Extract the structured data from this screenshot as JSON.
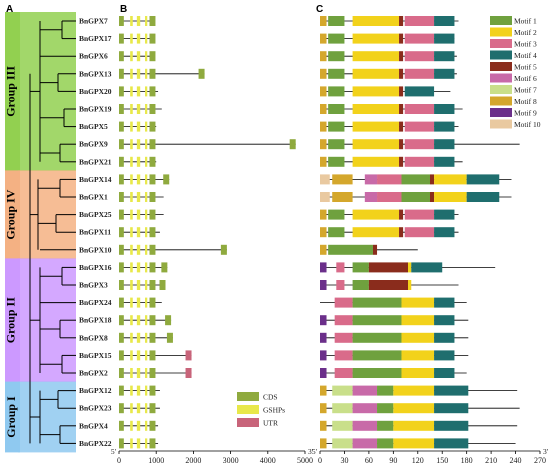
{
  "panels": {
    "a": "A",
    "b": "B",
    "c": "C"
  },
  "groups": [
    {
      "label": "Group III",
      "color": "#92d050",
      "first": 0,
      "last": 8
    },
    {
      "label": "Group IV",
      "color": "#f4b183",
      "first": 9,
      "last": 13
    },
    {
      "label": "Group II",
      "color": "#cc99ff",
      "first": 14,
      "last": 20
    },
    {
      "label": "Group I",
      "color": "#8fc9f0",
      "first": 21,
      "last": 24
    }
  ],
  "genes": [
    {
      "name": "BnGPX7",
      "group": "III",
      "gene_length": 950,
      "cds": [
        [
          0,
          130
        ],
        [
          300,
          370
        ],
        [
          480,
          570
        ],
        [
          700,
          760
        ],
        [
          820,
          980
        ]
      ],
      "ctype": "a",
      "protein_length": 170,
      "motifs": [
        8,
        1,
        2,
        5,
        3,
        4
      ],
      "sel": 2
    },
    {
      "name": "BnGPX17",
      "group": "III",
      "gene_length": 950,
      "cds": [
        [
          0,
          130
        ],
        [
          300,
          370
        ],
        [
          480,
          570
        ],
        [
          700,
          760
        ],
        [
          820,
          980
        ]
      ],
      "ctype": "a",
      "protein_length": 165,
      "motifs": [
        8,
        1,
        2,
        5,
        3,
        4
      ],
      "sel": 2
    },
    {
      "name": "BnGPX6",
      "group": "III",
      "gene_length": 950,
      "cds": [
        [
          0,
          130
        ],
        [
          300,
          370
        ],
        [
          480,
          570
        ],
        [
          700,
          760
        ],
        [
          820,
          980
        ]
      ],
      "ctype": "a",
      "protein_length": 168,
      "motifs": [
        8,
        1,
        2,
        5,
        3,
        4
      ],
      "sel": 2
    },
    {
      "name": "BnGPX13",
      "group": "III",
      "gene_length": 2300,
      "cds": [
        [
          0,
          130
        ],
        [
          300,
          370
        ],
        [
          480,
          570
        ],
        [
          700,
          760
        ],
        [
          820,
          980
        ]
      ],
      "ctype": "a",
      "protein_length": 168,
      "motifs": [
        8,
        1,
        2,
        5,
        3,
        4
      ],
      "sel": 2
    },
    {
      "name": "BnGPX20",
      "group": "III",
      "gene_length": 1050,
      "cds": [
        [
          0,
          130
        ],
        [
          300,
          370
        ],
        [
          480,
          570
        ],
        [
          700,
          760
        ],
        [
          820,
          980
        ]
      ],
      "ctype": "a",
      "protein_length": 160,
      "motifs": [
        8,
        1,
        2,
        5,
        4
      ],
      "sel": 2
    },
    {
      "name": "BnGPX19",
      "group": "III",
      "gene_length": 1150,
      "cds": [
        [
          0,
          130
        ],
        [
          300,
          370
        ],
        [
          480,
          570
        ],
        [
          700,
          760
        ],
        [
          820,
          980
        ]
      ],
      "ctype": "a",
      "protein_length": 175,
      "motifs": [
        8,
        1,
        2,
        5,
        3,
        4
      ],
      "sel": 2
    },
    {
      "name": "BnGPX5",
      "group": "III",
      "gene_length": 1000,
      "cds": [
        [
          0,
          130
        ],
        [
          300,
          370
        ],
        [
          480,
          570
        ],
        [
          700,
          760
        ],
        [
          820,
          980
        ]
      ],
      "ctype": "a",
      "protein_length": 170,
      "motifs": [
        8,
        1,
        2,
        5,
        3,
        4
      ],
      "sel": 2
    },
    {
      "name": "BnGPX9",
      "group": "III",
      "gene_length": 4750,
      "cds": [
        [
          0,
          130
        ],
        [
          300,
          370
        ],
        [
          480,
          570
        ],
        [
          700,
          760
        ],
        [
          820,
          980
        ]
      ],
      "ctype": "a",
      "protein_length": 245,
      "motifs": [
        8,
        1,
        2,
        5,
        3,
        4
      ],
      "sel": 2
    },
    {
      "name": "BnGPX21",
      "group": "III",
      "gene_length": 1000,
      "cds": [
        [
          0,
          130
        ],
        [
          300,
          370
        ],
        [
          480,
          570
        ],
        [
          700,
          760
        ],
        [
          820,
          980
        ]
      ],
      "ctype": "a",
      "protein_length": 175,
      "motifs": [
        8,
        1,
        2,
        5,
        3,
        4
      ],
      "sel": 2
    },
    {
      "name": "BnGPX14",
      "group": "IV",
      "gene_length": 1350,
      "cds": [
        [
          0,
          130
        ],
        [
          300,
          370
        ],
        [
          480,
          570
        ],
        [
          700,
          760
        ],
        [
          820,
          980
        ]
      ],
      "ctype": "b",
      "protein_length": 235,
      "motifs": [
        10,
        8,
        6,
        3,
        1,
        5,
        2,
        4
      ],
      "sel": 2
    },
    {
      "name": "BnGPX1",
      "group": "IV",
      "gene_length": 1200,
      "cds": [
        [
          0,
          130
        ],
        [
          300,
          370
        ],
        [
          480,
          570
        ],
        [
          700,
          760
        ],
        [
          820,
          980
        ]
      ],
      "ctype": "b",
      "protein_length": 235,
      "motifs": [
        10,
        8,
        6,
        3,
        1,
        5,
        2,
        4
      ],
      "sel": 2
    },
    {
      "name": "BnGPX25",
      "group": "IV",
      "gene_length": 1200,
      "cds": [
        [
          0,
          130
        ],
        [
          300,
          370
        ],
        [
          480,
          570
        ],
        [
          700,
          760
        ],
        [
          820,
          980
        ]
      ],
      "ctype": "a",
      "protein_length": 170,
      "motifs": [
        8,
        1,
        2,
        5,
        3,
        4
      ],
      "sel": 2
    },
    {
      "name": "BnGPX11",
      "group": "IV",
      "gene_length": 1100,
      "cds": [
        [
          0,
          130
        ],
        [
          300,
          370
        ],
        [
          480,
          570
        ],
        [
          700,
          760
        ],
        [
          820,
          980
        ]
      ],
      "ctype": "a",
      "protein_length": 170,
      "motifs": [
        8,
        1,
        2,
        5,
        3,
        4
      ],
      "sel": 2
    },
    {
      "name": "BnGPX10",
      "group": "IV",
      "gene_length": 2900,
      "cds": [
        [
          0,
          130
        ],
        [
          300,
          370
        ],
        [
          480,
          570
        ],
        [
          700,
          760
        ],
        [
          820,
          980
        ]
      ],
      "ctype": "c",
      "protein_length": 120,
      "motifs": [
        8,
        1,
        5
      ],
      "sel": 2
    },
    {
      "name": "BnGPX16",
      "group": "II",
      "gene_length": 1300,
      "cds": [
        [
          0,
          130
        ],
        [
          300,
          370
        ],
        [
          480,
          570
        ],
        [
          700,
          760
        ],
        [
          820,
          980
        ]
      ],
      "ctype": "d",
      "protein_length": 215,
      "motifs": [
        9,
        3,
        1,
        5,
        2,
        4
      ],
      "sel": 2
    },
    {
      "name": "BnGPX3",
      "group": "II",
      "gene_length": 1250,
      "cds": [
        [
          0,
          130
        ],
        [
          300,
          370
        ],
        [
          480,
          570
        ],
        [
          700,
          760
        ],
        [
          820,
          980
        ]
      ],
      "ctype": "d",
      "protein_length": 170,
      "motifs": [
        9,
        3,
        1,
        5,
        2
      ],
      "sel": 2
    },
    {
      "name": "BnGPX24",
      "group": "II",
      "gene_length": 1150,
      "cds": [
        [
          0,
          130
        ],
        [
          300,
          370
        ],
        [
          480,
          570
        ],
        [
          700,
          760
        ],
        [
          820,
          980
        ]
      ],
      "ctype": "e",
      "protein_length": 180,
      "motifs": [
        3,
        1,
        2,
        4
      ],
      "sel": 2
    },
    {
      "name": "BnGPX18",
      "group": "II",
      "gene_length": 1400,
      "cds": [
        [
          0,
          130
        ],
        [
          300,
          370
        ],
        [
          480,
          570
        ],
        [
          700,
          760
        ],
        [
          820,
          980
        ]
      ],
      "ctype": "f",
      "protein_length": 182,
      "motifs": [
        9,
        3,
        1,
        2,
        4
      ],
      "sel": 2
    },
    {
      "name": "BnGPX8",
      "group": "II",
      "gene_length": 1450,
      "cds": [
        [
          0,
          130
        ],
        [
          300,
          370
        ],
        [
          480,
          570
        ],
        [
          700,
          760
        ],
        [
          820,
          980
        ]
      ],
      "ctype": "f",
      "protein_length": 182,
      "motifs": [
        9,
        3,
        1,
        2,
        4
      ],
      "sel": 2
    },
    {
      "name": "BnGPX15",
      "group": "II",
      "gene_length": 1950,
      "cds": [
        [
          0,
          130
        ],
        [
          300,
          370
        ],
        [
          480,
          570
        ],
        [
          700,
          760
        ],
        [
          820,
          980
        ]
      ],
      "ctype": "f",
      "protein_length": 182,
      "motifs": [
        9,
        3,
        1,
        2,
        4
      ],
      "sel": 2
    },
    {
      "name": "BnGPX2",
      "group": "II",
      "gene_length": 1950,
      "cds": [
        [
          0,
          130
        ],
        [
          300,
          370
        ],
        [
          480,
          570
        ],
        [
          700,
          760
        ],
        [
          820,
          980
        ]
      ],
      "ctype": "f",
      "protein_length": 180,
      "motifs": [
        9,
        3,
        1,
        2,
        4
      ],
      "sel": 2
    },
    {
      "name": "BnGPX12",
      "group": "I",
      "gene_length": 1100,
      "cds": [
        [
          0,
          130
        ],
        [
          300,
          370
        ],
        [
          480,
          570
        ],
        [
          700,
          760
        ],
        [
          820,
          980
        ]
      ],
      "ctype": "g",
      "protein_length": 242,
      "motifs": [
        8,
        7,
        6,
        1,
        2,
        4
      ],
      "sel": 2
    },
    {
      "name": "BnGPX23",
      "group": "I",
      "gene_length": 1100,
      "cds": [
        [
          0,
          130
        ],
        [
          300,
          370
        ],
        [
          480,
          570
        ],
        [
          700,
          760
        ],
        [
          820,
          980
        ]
      ],
      "ctype": "g",
      "protein_length": 245,
      "motifs": [
        8,
        7,
        6,
        1,
        2,
        4
      ],
      "sel": 2
    },
    {
      "name": "BnGPX4",
      "group": "I",
      "gene_length": 1050,
      "cds": [
        [
          0,
          130
        ],
        [
          300,
          370
        ],
        [
          480,
          570
        ],
        [
          700,
          760
        ],
        [
          820,
          980
        ]
      ],
      "ctype": "g",
      "protein_length": 242,
      "motifs": [
        8,
        7,
        6,
        1,
        2,
        4
      ],
      "sel": 2
    },
    {
      "name": "BnGPX22",
      "group": "I",
      "gene_length": 1050,
      "cds": [
        [
          0,
          130
        ],
        [
          300,
          370
        ],
        [
          480,
          570
        ],
        [
          700,
          760
        ],
        [
          820,
          980
        ]
      ],
      "ctype": "g",
      "protein_length": 240,
      "motifs": [
        8,
        7,
        6,
        1,
        2,
        4
      ],
      "sel": 2
    }
  ],
  "motif_positions": {
    "a": [
      [
        0,
        8
      ],
      [
        10,
        30
      ],
      [
        40,
        97
      ],
      [
        97,
        102
      ],
      [
        104,
        140
      ],
      [
        140,
        165
      ]
    ],
    "b": [
      [
        0,
        12
      ],
      [
        15,
        40
      ],
      [
        55,
        70
      ],
      [
        70,
        100
      ],
      [
        100,
        135
      ],
      [
        135,
        140
      ],
      [
        140,
        180
      ],
      [
        180,
        220
      ]
    ],
    "c": [
      [
        0,
        8
      ],
      [
        10,
        65
      ],
      [
        65,
        70
      ]
    ],
    "d": [
      [
        0,
        8
      ],
      [
        20,
        30
      ],
      [
        40,
        60
      ],
      [
        60,
        108
      ],
      [
        108,
        112
      ],
      [
        112,
        150
      ],
      [
        150,
        175
      ]
    ],
    "e": [
      [
        18,
        40
      ],
      [
        40,
        100
      ],
      [
        100,
        140
      ],
      [
        140,
        165
      ]
    ],
    "f": [
      [
        0,
        8
      ],
      [
        18,
        40
      ],
      [
        40,
        100
      ],
      [
        100,
        140
      ],
      [
        140,
        165
      ]
    ],
    "g": [
      [
        0,
        8
      ],
      [
        15,
        40
      ],
      [
        40,
        70
      ],
      [
        70,
        90
      ],
      [
        90,
        140
      ],
      [
        140,
        182
      ],
      [
        182,
        220
      ]
    ]
  },
  "structure_legend": [
    {
      "label": "CDS",
      "color": "#8faa3e"
    },
    {
      "label": "GSHPs",
      "color": "#e8e84a"
    },
    {
      "label": "UTR",
      "color": "#c8647a"
    }
  ],
  "motif_legend": [
    {
      "id": 1,
      "label": "Motif 1",
      "color": "#6fa13e"
    },
    {
      "id": 2,
      "label": "Motif 2",
      "color": "#f2d21b"
    },
    {
      "id": 3,
      "label": "Motif 3",
      "color": "#d96b8a"
    },
    {
      "id": 4,
      "label": "Motif 4",
      "color": "#1f6e6e"
    },
    {
      "id": 5,
      "label": "Motif 5",
      "color": "#8a2c1c"
    },
    {
      "id": 6,
      "label": "Motif 6",
      "color": "#c86aa8"
    },
    {
      "id": 7,
      "label": "Motif 7",
      "color": "#c9df8a"
    },
    {
      "id": 8,
      "label": "Motif 8",
      "color": "#d4a72c"
    },
    {
      "id": 9,
      "label": "Motif 9",
      "color": "#6b2f8a"
    },
    {
      "id": 10,
      "label": "Motif 10",
      "color": "#e9c9a0"
    }
  ],
  "axis_b": {
    "ticks": [
      0,
      1000,
      2000,
      3000,
      4000,
      5000
    ],
    "start_label": "5'",
    "end_label": "3'",
    "max": 5000
  },
  "axis_c": {
    "ticks": [
      0,
      30,
      60,
      90,
      120,
      150,
      180,
      210,
      240,
      270
    ],
    "start_label": "5'",
    "end_label": "3'",
    "max": 270
  }
}
